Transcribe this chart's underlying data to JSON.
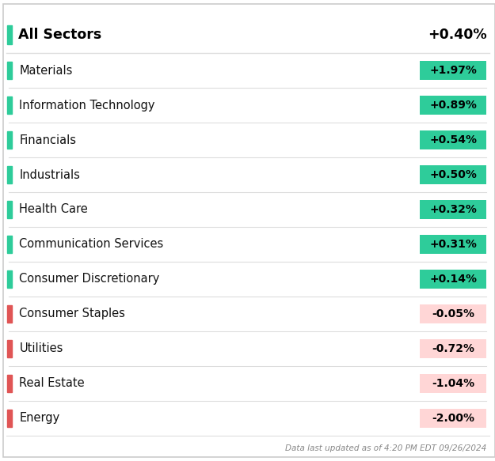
{
  "header_label": "All Sectors",
  "header_value": "+0.40%",
  "rows": [
    {
      "sector": "Materials",
      "value": "+1.97%",
      "change": 1.97
    },
    {
      "sector": "Information Technology",
      "value": "+0.89%",
      "change": 0.89
    },
    {
      "sector": "Financials",
      "value": "+0.54%",
      "change": 0.54
    },
    {
      "sector": "Industrials",
      "value": "+0.50%",
      "change": 0.5
    },
    {
      "sector": "Health Care",
      "value": "+0.32%",
      "change": 0.32
    },
    {
      "sector": "Communication Services",
      "value": "+0.31%",
      "change": 0.31
    },
    {
      "sector": "Consumer Discretionary",
      "value": "+0.14%",
      "change": 0.14
    },
    {
      "sector": "Consumer Staples",
      "value": "-0.05%",
      "change": -0.05
    },
    {
      "sector": "Utilities",
      "value": "-0.72%",
      "change": -0.72
    },
    {
      "sector": "Real Estate",
      "value": "-1.04%",
      "change": -1.04
    },
    {
      "sector": "Energy",
      "value": "-2.00%",
      "change": -2.0
    }
  ],
  "footer": "Data last updated as of 4:20 PM EDT 09/26/2024",
  "bg_color": "#ffffff",
  "positive_bar_color": "#2ecc9a",
  "negative_bar_color": "#e05555",
  "positive_badge_bg": "#2ecc9a",
  "negative_badge_bg": "#ffd6d6",
  "positive_badge_text": "#000000",
  "negative_badge_text": "#000000",
  "header_bar_color": "#2ecc9a",
  "border_color": "#cccccc",
  "row_line_color": "#dddddd",
  "footer_color": "#888888"
}
